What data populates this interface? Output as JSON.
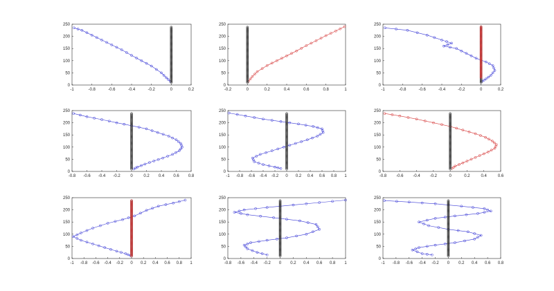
{
  "figure": {
    "layout": "3x3 grid of small line plots with circle markers"
  },
  "colors": {
    "blue": "#3a3ad6",
    "red": "#d63a3a",
    "black": "#333333",
    "axis": "#262626"
  },
  "chart_data": [
    {
      "type": "line",
      "xlim": [
        -1,
        0.2
      ],
      "ylim": [
        0,
        250
      ],
      "xticks": [
        -1,
        -0.8,
        -0.6,
        -0.4,
        -0.2,
        0,
        0.2
      ],
      "yticks": [
        0,
        50,
        100,
        150,
        200,
        250
      ],
      "series": [
        {
          "color": "blue",
          "points": [
            [
              -0.98,
              235
            ],
            [
              -0.9,
              225
            ],
            [
              -0.8,
              205
            ],
            [
              -0.7,
              185
            ],
            [
              -0.6,
              165
            ],
            [
              -0.5,
              145
            ],
            [
              -0.4,
              122
            ],
            [
              -0.3,
              100
            ],
            [
              -0.2,
              78
            ],
            [
              -0.1,
              50
            ],
            [
              -0.05,
              30
            ],
            [
              -0.01,
              15
            ]
          ]
        },
        {
          "color": "black",
          "column_x": 0,
          "column_from": 10,
          "column_to": 240
        }
      ]
    },
    {
      "type": "line",
      "xlim": [
        -0.2,
        1
      ],
      "ylim": [
        0,
        250
      ],
      "xticks": [
        -0.2,
        0,
        0.2,
        0.4,
        0.6,
        0.8,
        1
      ],
      "yticks": [
        0,
        50,
        100,
        150,
        200,
        250
      ],
      "series": [
        {
          "color": "red",
          "points": [
            [
              0.01,
              15
            ],
            [
              0.05,
              35
            ],
            [
              0.1,
              55
            ],
            [
              0.2,
              80
            ],
            [
              0.3,
              100
            ],
            [
              0.4,
              120
            ],
            [
              0.5,
              140
            ],
            [
              0.6,
              162
            ],
            [
              0.7,
              182
            ],
            [
              0.8,
              203
            ],
            [
              0.9,
              222
            ],
            [
              0.99,
              240
            ]
          ]
        },
        {
          "color": "black",
          "column_x": 0,
          "column_from": 10,
          "column_to": 240
        }
      ]
    },
    {
      "type": "line",
      "xlim": [
        -1,
        0.2
      ],
      "ylim": [
        0,
        250
      ],
      "xticks": [
        -1,
        -0.8,
        -0.6,
        -0.4,
        -0.2,
        0,
        0.2
      ],
      "yticks": [
        0,
        50,
        100,
        150,
        200,
        250
      ],
      "series": [
        {
          "color": "blue",
          "points": [
            [
              -0.98,
              235
            ],
            [
              -0.75,
              225
            ],
            [
              -0.55,
              205
            ],
            [
              -0.4,
              185
            ],
            [
              -0.3,
              172
            ],
            [
              -0.38,
              160
            ],
            [
              -0.25,
              150
            ],
            [
              -0.15,
              130
            ],
            [
              -0.05,
              110
            ],
            [
              0.05,
              95
            ],
            [
              0.12,
              80
            ],
            [
              0.14,
              60
            ],
            [
              0.1,
              40
            ],
            [
              0.05,
              25
            ],
            [
              0.01,
              15
            ]
          ]
        },
        {
          "color": "black",
          "column_x": 0,
          "column_from": 10,
          "column_to": 240
        },
        {
          "color": "red",
          "column_x": 0,
          "column_from": 30,
          "column_to": 240
        }
      ]
    },
    {
      "type": "line",
      "xlim": [
        -0.8,
        0.8
      ],
      "ylim": [
        0,
        250
      ],
      "xticks": [
        -0.8,
        -0.6,
        -0.4,
        -0.2,
        0,
        0.2,
        0.4,
        0.6,
        0.8
      ],
      "yticks": [
        0,
        50,
        100,
        150,
        200,
        250
      ],
      "series": [
        {
          "color": "blue",
          "points": [
            [
              -0.78,
              238
            ],
            [
              -0.6,
              225
            ],
            [
              -0.4,
              213
            ],
            [
              -0.2,
              200
            ],
            [
              0,
              188
            ],
            [
              0.2,
              175
            ],
            [
              0.35,
              160
            ],
            [
              0.5,
              145
            ],
            [
              0.6,
              130
            ],
            [
              0.66,
              115
            ],
            [
              0.68,
              100
            ],
            [
              0.64,
              85
            ],
            [
              0.55,
              70
            ],
            [
              0.42,
              55
            ],
            [
              0.3,
              43
            ],
            [
              0.18,
              30
            ],
            [
              0.08,
              18
            ],
            [
              0.03,
              10
            ]
          ]
        },
        {
          "color": "black",
          "column_x": 0,
          "column_from": 10,
          "column_to": 240
        }
      ]
    },
    {
      "type": "line",
      "xlim": [
        -1,
        1
      ],
      "ylim": [
        0,
        250
      ],
      "xticks": [
        -1,
        -0.8,
        -0.6,
        -0.4,
        -0.2,
        0,
        0.2,
        0.4,
        0.6,
        0.8,
        1
      ],
      "yticks": [
        0,
        50,
        100,
        150,
        200,
        250
      ],
      "series": [
        {
          "color": "blue",
          "points": [
            [
              -0.98,
              240
            ],
            [
              -0.7,
              228
            ],
            [
              -0.4,
              215
            ],
            [
              -0.1,
              205
            ],
            [
              0.2,
              195
            ],
            [
              0.45,
              185
            ],
            [
              0.6,
              175
            ],
            [
              0.62,
              160
            ],
            [
              0.52,
              145
            ],
            [
              0.35,
              130
            ],
            [
              0.15,
              115
            ],
            [
              -0.05,
              100
            ],
            [
              -0.25,
              85
            ],
            [
              -0.45,
              70
            ],
            [
              -0.58,
              55
            ],
            [
              -0.55,
              40
            ],
            [
              -0.4,
              28
            ],
            [
              -0.2,
              18
            ],
            [
              -0.1,
              12
            ]
          ]
        },
        {
          "color": "black",
          "column_x": 0,
          "column_from": 10,
          "column_to": 240
        }
      ]
    },
    {
      "type": "line",
      "xlim": [
        -0.8,
        0.6
      ],
      "ylim": [
        0,
        250
      ],
      "xticks": [
        -0.8,
        -0.6,
        -0.4,
        -0.2,
        0,
        0.2,
        0.4,
        0.6
      ],
      "yticks": [
        0,
        50,
        100,
        150,
        200,
        250
      ],
      "series": [
        {
          "color": "red",
          "points": [
            [
              -0.78,
              238
            ],
            [
              -0.6,
              228
            ],
            [
              -0.4,
              215
            ],
            [
              -0.2,
              200
            ],
            [
              0,
              185
            ],
            [
              0.15,
              170
            ],
            [
              0.3,
              155
            ],
            [
              0.42,
              140
            ],
            [
              0.5,
              125
            ],
            [
              0.55,
              110
            ],
            [
              0.53,
              95
            ],
            [
              0.45,
              80
            ],
            [
              0.35,
              65
            ],
            [
              0.25,
              50
            ],
            [
              0.15,
              35
            ],
            [
              0.06,
              22
            ],
            [
              0.02,
              12
            ]
          ]
        },
        {
          "color": "black",
          "column_x": 0,
          "column_from": 10,
          "column_to": 240
        }
      ]
    },
    {
      "type": "line",
      "xlim": [
        -1,
        1
      ],
      "ylim": [
        0,
        250
      ],
      "xticks": [
        -1,
        -0.8,
        -0.6,
        -0.4,
        -0.2,
        0,
        0.2,
        0.4,
        0.6,
        0.8,
        1
      ],
      "yticks": [
        0,
        50,
        100,
        150,
        200,
        250
      ],
      "series": [
        {
          "color": "blue",
          "points": [
            [
              0.9,
              240
            ],
            [
              0.7,
              228
            ],
            [
              0.45,
              215
            ],
            [
              0.25,
              198
            ],
            [
              0.05,
              175
            ],
            [
              -0.15,
              160
            ],
            [
              -0.4,
              145
            ],
            [
              -0.65,
              125
            ],
            [
              -0.85,
              105
            ],
            [
              -0.98,
              90
            ],
            [
              -0.85,
              75
            ],
            [
              -0.65,
              60
            ],
            [
              -0.45,
              45
            ],
            [
              -0.25,
              30
            ],
            [
              -0.1,
              20
            ],
            [
              -0.02,
              12
            ]
          ]
        },
        {
          "color": "black",
          "column_x": 0,
          "column_from": 10,
          "column_to": 240
        },
        {
          "color": "red",
          "column_x": 0,
          "column_from": 10,
          "column_to": 240
        }
      ]
    },
    {
      "type": "line",
      "xlim": [
        -0.8,
        1
      ],
      "ylim": [
        0,
        250
      ],
      "xticks": [
        -0.8,
        -0.6,
        -0.4,
        -0.2,
        0,
        0.2,
        0.4,
        0.6,
        0.8,
        1
      ],
      "yticks": [
        0,
        50,
        100,
        150,
        200,
        250
      ],
      "series": [
        {
          "color": "blue",
          "points": [
            [
              1,
              240
            ],
            [
              0.6,
              230
            ],
            [
              0.2,
              220
            ],
            [
              -0.2,
              210
            ],
            [
              -0.55,
              200
            ],
            [
              -0.7,
              190
            ],
            [
              -0.5,
              180
            ],
            [
              -0.1,
              168
            ],
            [
              0.3,
              155
            ],
            [
              0.55,
              140
            ],
            [
              0.6,
              120
            ],
            [
              0.4,
              100
            ],
            [
              0.1,
              85
            ],
            [
              -0.2,
              75
            ],
            [
              -0.45,
              65
            ],
            [
              -0.55,
              55
            ],
            [
              -0.5,
              40
            ],
            [
              -0.35,
              25
            ],
            [
              -0.2,
              15
            ]
          ]
        },
        {
          "color": "black",
          "column_x": 0,
          "column_from": 10,
          "column_to": 240
        }
      ]
    },
    {
      "type": "line",
      "xlim": [
        -1,
        0.8
      ],
      "ylim": [
        0,
        250
      ],
      "xticks": [
        -1,
        -0.8,
        -0.6,
        -0.4,
        -0.2,
        0,
        0.2,
        0.4,
        0.6,
        0.8
      ],
      "yticks": [
        0,
        50,
        100,
        150,
        200,
        250
      ],
      "series": [
        {
          "color": "blue",
          "points": [
            [
              -0.98,
              238
            ],
            [
              -0.6,
              232
            ],
            [
              -0.2,
              225
            ],
            [
              0.2,
              215
            ],
            [
              0.55,
              205
            ],
            [
              0.65,
              195
            ],
            [
              0.45,
              185
            ],
            [
              0.1,
              175
            ],
            [
              -0.2,
              165
            ],
            [
              -0.45,
              150
            ],
            [
              -0.3,
              135
            ],
            [
              0,
              120
            ],
            [
              0.3,
              110
            ],
            [
              0.5,
              95
            ],
            [
              0.4,
              80
            ],
            [
              0.1,
              65
            ],
            [
              -0.2,
              55
            ],
            [
              -0.45,
              45
            ],
            [
              -0.55,
              35
            ],
            [
              -0.4,
              20
            ],
            [
              -0.25,
              15
            ]
          ]
        },
        {
          "color": "black",
          "column_x": 0,
          "column_from": 10,
          "column_to": 240
        }
      ]
    }
  ]
}
